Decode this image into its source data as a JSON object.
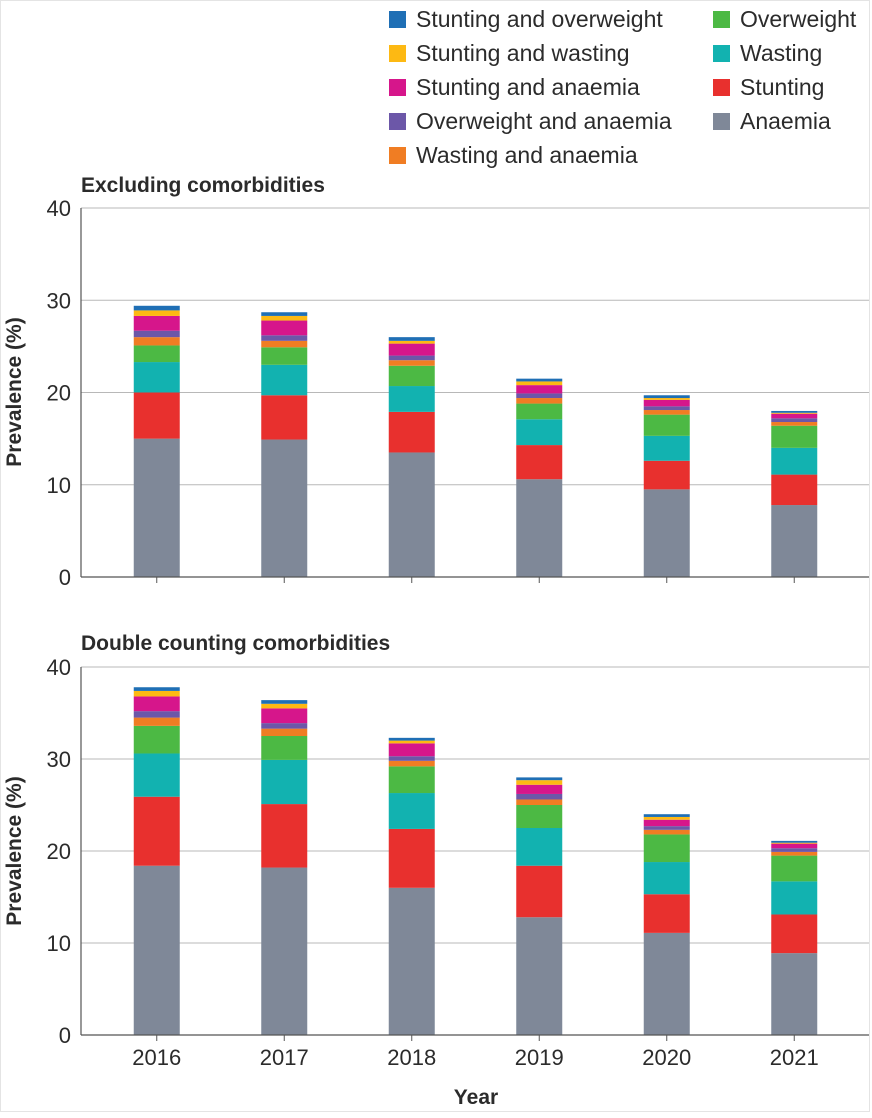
{
  "legend": {
    "items": [
      {
        "label": "Stunting and overweight",
        "color": "#1f6fb5"
      },
      {
        "label": "Overweight",
        "color": "#4cb944"
      },
      {
        "label": "Stunting and wasting",
        "color": "#fdb913"
      },
      {
        "label": "Wasting",
        "color": "#12b2b0"
      },
      {
        "label": "Stunting and anaemia",
        "color": "#d6168b"
      },
      {
        "label": "Stunting",
        "color": "#e8302e"
      },
      {
        "label": "Overweight and anaemia",
        "color": "#6c57a8"
      },
      {
        "label": "Anaemia",
        "color": "#7f8898"
      },
      {
        "label": "Wasting and anaemia",
        "color": "#f07d23"
      }
    ]
  },
  "x_axis_title": "Year",
  "chart_data": [
    {
      "type": "bar",
      "stacked": true,
      "title": "Excluding comorbidities",
      "ylabel": "Prevalence (%)",
      "xlabel": "Year",
      "ylim": [
        0,
        40
      ],
      "yticks": [
        0,
        10,
        20,
        30,
        40
      ],
      "grid": true,
      "legend_position": "top-right",
      "categories": [
        "2016",
        "2017",
        "2018",
        "2019",
        "2020",
        "2021"
      ],
      "series": [
        {
          "name": "Anaemia",
          "color": "#7f8898",
          "values": [
            15.0,
            14.9,
            13.5,
            10.6,
            9.5,
            7.8
          ]
        },
        {
          "name": "Stunting",
          "color": "#e8302e",
          "values": [
            5.0,
            4.8,
            4.4,
            3.7,
            3.1,
            3.3
          ]
        },
        {
          "name": "Wasting",
          "color": "#12b2b0",
          "values": [
            3.3,
            3.3,
            2.8,
            2.8,
            2.7,
            2.9
          ]
        },
        {
          "name": "Overweight",
          "color": "#4cb944",
          "values": [
            1.8,
            1.9,
            2.2,
            1.7,
            2.3,
            2.4
          ]
        },
        {
          "name": "Wasting and anaemia",
          "color": "#f07d23",
          "values": [
            0.9,
            0.7,
            0.6,
            0.6,
            0.5,
            0.4
          ]
        },
        {
          "name": "Overweight and anaemia",
          "color": "#6c57a8",
          "values": [
            0.7,
            0.6,
            0.5,
            0.5,
            0.4,
            0.4
          ]
        },
        {
          "name": "Stunting and anaemia",
          "color": "#d6168b",
          "values": [
            1.6,
            1.6,
            1.3,
            0.9,
            0.7,
            0.5
          ]
        },
        {
          "name": "Stunting and wasting",
          "color": "#fdb913",
          "values": [
            0.6,
            0.5,
            0.3,
            0.4,
            0.2,
            0.1
          ]
        },
        {
          "name": "Stunting and overweight",
          "color": "#1f6fb5",
          "values": [
            0.5,
            0.4,
            0.4,
            0.3,
            0.3,
            0.2
          ]
        }
      ]
    },
    {
      "type": "bar",
      "stacked": true,
      "title": "Double counting comorbidities",
      "ylabel": "Prevalence (%)",
      "xlabel": "Year",
      "ylim": [
        0,
        40
      ],
      "yticks": [
        0,
        10,
        20,
        30,
        40
      ],
      "grid": true,
      "categories": [
        "2016",
        "2017",
        "2018",
        "2019",
        "2020",
        "2021"
      ],
      "series": [
        {
          "name": "Anaemia",
          "color": "#7f8898",
          "values": [
            18.4,
            18.2,
            16.0,
            12.8,
            11.1,
            8.9
          ]
        },
        {
          "name": "Stunting",
          "color": "#e8302e",
          "values": [
            7.5,
            6.9,
            6.4,
            5.6,
            4.2,
            4.2
          ]
        },
        {
          "name": "Wasting",
          "color": "#12b2b0",
          "values": [
            4.7,
            4.8,
            3.9,
            4.1,
            3.5,
            3.6
          ]
        },
        {
          "name": "Overweight",
          "color": "#4cb944",
          "values": [
            3.0,
            2.6,
            2.9,
            2.5,
            3.0,
            2.8
          ]
        },
        {
          "name": "Wasting and anaemia",
          "color": "#f07d23",
          "values": [
            0.9,
            0.8,
            0.6,
            0.6,
            0.5,
            0.4
          ]
        },
        {
          "name": "Overweight and anaemia",
          "color": "#6c57a8",
          "values": [
            0.7,
            0.6,
            0.5,
            0.6,
            0.4,
            0.4
          ]
        },
        {
          "name": "Stunting and anaemia",
          "color": "#d6168b",
          "values": [
            1.6,
            1.6,
            1.4,
            1.0,
            0.7,
            0.5
          ]
        },
        {
          "name": "Stunting and wasting",
          "color": "#fdb913",
          "values": [
            0.6,
            0.5,
            0.3,
            0.5,
            0.3,
            0.1
          ]
        },
        {
          "name": "Stunting and overweight",
          "color": "#1f6fb5",
          "values": [
            0.4,
            0.4,
            0.3,
            0.3,
            0.3,
            0.2
          ]
        }
      ]
    }
  ]
}
